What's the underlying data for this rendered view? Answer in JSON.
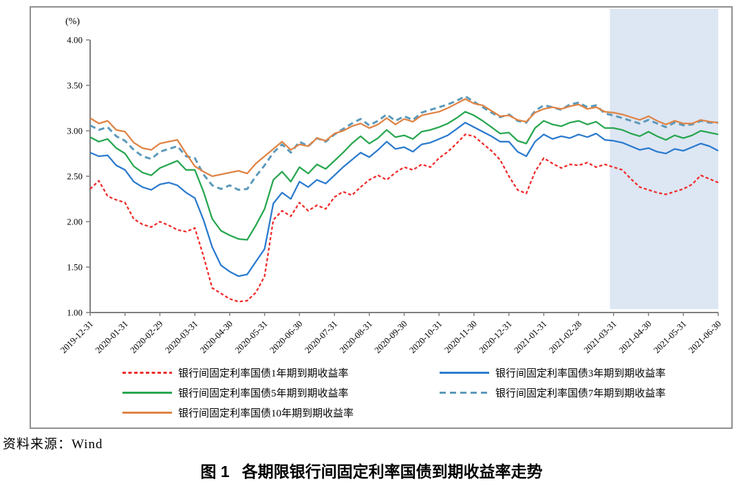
{
  "source_note": "资料来源：Wind",
  "caption": {
    "prefix": "图 1",
    "title": "各期限银行间固定利率国债到期收益率走势"
  },
  "chart_data": {
    "type": "line",
    "title": "各期限银行间固定利率国债到期收益率走势",
    "ylabel": "(%)",
    "ylim": [
      1.0,
      4.0
    ],
    "y_ticks": [
      4.0,
      3.5,
      3.0,
      2.5,
      2.0,
      1.5,
      1.0
    ],
    "grid": false,
    "legend_position": "bottom",
    "axis_color": "#7f7f7f",
    "highlight_region": {
      "x_start_frac": 0.8275,
      "x_end_frac": 1.0,
      "color": "#dde6f3"
    },
    "categories": [
      "2019-12-31",
      "2020-01-31",
      "2020-02-29",
      "2020-03-31",
      "2020-04-30",
      "2020-05-31",
      "2020-06-30",
      "2020-07-31",
      "2020-08-31",
      "2020-09-30",
      "2020-10-31",
      "2020-11-30",
      "2020-12-31",
      "2021-01-31",
      "2021-02-28",
      "2021-03-31",
      "2021-04-30",
      "2021-05-31",
      "2021-06-30"
    ],
    "series": [
      {
        "id": "1y",
        "label": "银行间固定利率国债1年期到期收益率",
        "color": "#ee2c2a",
        "width": 2.3,
        "dash": "4.5 3.2",
        "legend_dash": [
          5,
          8.5
        ],
        "values": [
          2.36,
          2.45,
          2.28,
          2.24,
          2.21,
          2.03,
          1.97,
          1.94,
          2.0,
          1.96,
          1.91,
          1.89,
          1.93,
          1.62,
          1.27,
          1.21,
          1.15,
          1.12,
          1.13,
          1.22,
          1.4,
          2.02,
          2.12,
          2.06,
          2.21,
          2.12,
          2.18,
          2.14,
          2.27,
          2.33,
          2.29,
          2.38,
          2.46,
          2.51,
          2.46,
          2.54,
          2.6,
          2.57,
          2.63,
          2.6,
          2.7,
          2.77,
          2.86,
          2.96,
          2.94,
          2.86,
          2.78,
          2.68,
          2.5,
          2.35,
          2.31,
          2.55,
          2.7,
          2.64,
          2.59,
          2.63,
          2.62,
          2.65,
          2.6,
          2.63,
          2.6,
          2.57,
          2.47,
          2.38,
          2.35,
          2.32,
          2.3,
          2.33,
          2.36,
          2.41,
          2.51,
          2.47,
          2.43
        ]
      },
      {
        "id": "3y",
        "label": "银行间固定利率国债3年期到期收益率",
        "color": "#2b7bce",
        "width": 2.3,
        "dash": null,
        "legend_dash": null,
        "values": [
          2.76,
          2.72,
          2.73,
          2.62,
          2.57,
          2.44,
          2.38,
          2.35,
          2.41,
          2.43,
          2.4,
          2.32,
          2.26,
          2.02,
          1.72,
          1.52,
          1.45,
          1.4,
          1.42,
          1.56,
          1.7,
          2.2,
          2.32,
          2.25,
          2.44,
          2.38,
          2.46,
          2.42,
          2.51,
          2.6,
          2.68,
          2.76,
          2.71,
          2.79,
          2.88,
          2.8,
          2.82,
          2.77,
          2.85,
          2.87,
          2.91,
          2.95,
          3.02,
          3.09,
          3.04,
          2.99,
          2.94,
          2.88,
          2.88,
          2.77,
          2.72,
          2.88,
          2.96,
          2.91,
          2.94,
          2.92,
          2.96,
          2.93,
          2.97,
          2.9,
          2.89,
          2.87,
          2.83,
          2.79,
          2.81,
          2.77,
          2.75,
          2.8,
          2.78,
          2.82,
          2.86,
          2.83,
          2.78
        ]
      },
      {
        "id": "5y",
        "label": "银行间固定利率国债5年期到期收益率",
        "color": "#28a750",
        "width": 2.3,
        "dash": null,
        "legend_dash": null,
        "values": [
          2.93,
          2.88,
          2.91,
          2.81,
          2.75,
          2.61,
          2.54,
          2.51,
          2.59,
          2.63,
          2.67,
          2.57,
          2.57,
          2.33,
          2.03,
          1.9,
          1.85,
          1.81,
          1.8,
          1.96,
          2.14,
          2.46,
          2.55,
          2.44,
          2.6,
          2.53,
          2.63,
          2.58,
          2.67,
          2.76,
          2.86,
          2.94,
          2.86,
          2.92,
          3.01,
          2.93,
          2.95,
          2.91,
          2.99,
          3.01,
          3.04,
          3.08,
          3.14,
          3.21,
          3.17,
          3.11,
          3.04,
          2.97,
          2.98,
          2.89,
          2.86,
          3.03,
          3.11,
          3.07,
          3.05,
          3.09,
          3.11,
          3.07,
          3.1,
          3.03,
          3.03,
          3.01,
          2.97,
          2.94,
          2.99,
          2.94,
          2.9,
          2.95,
          2.92,
          2.95,
          3.0,
          2.98,
          2.96
        ]
      },
      {
        "id": "7y",
        "label": "银行间固定利率国债7年期到期收益率",
        "color": "#5b99ba",
        "width": 3.0,
        "dash": "8.5 5.5",
        "legend_dash": [
          9,
          15
        ],
        "values": [
          3.06,
          3.01,
          3.04,
          2.94,
          2.89,
          2.79,
          2.72,
          2.69,
          2.77,
          2.8,
          2.83,
          2.72,
          2.7,
          2.52,
          2.4,
          2.36,
          2.4,
          2.35,
          2.36,
          2.5,
          2.62,
          2.76,
          2.85,
          2.76,
          2.88,
          2.83,
          2.92,
          2.88,
          2.96,
          3.02,
          3.08,
          3.13,
          3.06,
          3.11,
          3.18,
          3.11,
          3.16,
          3.12,
          3.2,
          3.23,
          3.26,
          3.29,
          3.33,
          3.38,
          3.32,
          3.26,
          3.2,
          3.15,
          3.18,
          3.11,
          3.09,
          3.22,
          3.28,
          3.26,
          3.23,
          3.29,
          3.31,
          3.26,
          3.28,
          3.19,
          3.17,
          3.14,
          3.11,
          3.08,
          3.12,
          3.08,
          3.04,
          3.09,
          3.06,
          3.07,
          3.11,
          3.09,
          3.09
        ]
      },
      {
        "id": "10y",
        "label": "银行间固定利率国债10年期到期收益率",
        "color": "#df8344",
        "width": 2.3,
        "dash": null,
        "legend_dash": null,
        "values": [
          3.14,
          3.08,
          3.11,
          3.01,
          2.99,
          2.87,
          2.81,
          2.79,
          2.86,
          2.88,
          2.9,
          2.75,
          2.61,
          2.55,
          2.5,
          2.52,
          2.54,
          2.56,
          2.53,
          2.64,
          2.72,
          2.8,
          2.88,
          2.79,
          2.85,
          2.83,
          2.92,
          2.89,
          2.97,
          3.0,
          3.05,
          3.08,
          3.03,
          3.07,
          3.14,
          3.07,
          3.13,
          3.1,
          3.17,
          3.19,
          3.21,
          3.25,
          3.3,
          3.35,
          3.3,
          3.28,
          3.22,
          3.16,
          3.17,
          3.12,
          3.1,
          3.2,
          3.24,
          3.26,
          3.24,
          3.27,
          3.29,
          3.24,
          3.26,
          3.21,
          3.2,
          3.18,
          3.15,
          3.12,
          3.16,
          3.11,
          3.07,
          3.11,
          3.08,
          3.08,
          3.12,
          3.1,
          3.09
        ]
      }
    ]
  }
}
